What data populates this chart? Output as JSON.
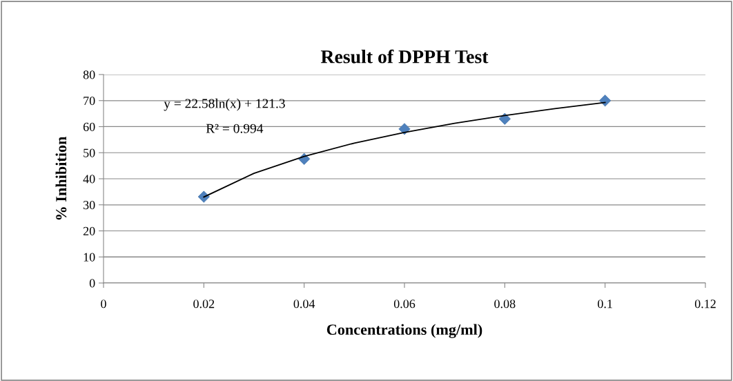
{
  "chart_data": {
    "type": "scatter",
    "title": "Result of DPPH Test",
    "xlabel": "Concentrations (mg/ml)",
    "ylabel": "% Inhibition",
    "series": [
      {
        "color": "#4f81bd",
        "marker": "diamond",
        "x": [
          0.02,
          0.04,
          0.06,
          0.08,
          0.1
        ],
        "values": [
          33.1,
          47.6,
          59.1,
          63,
          70
        ]
      },
      {
        "type": "line",
        "color": "#000000",
        "marker": "none",
        "line_style": "solid",
        "x": [
          0.02,
          0.03,
          0.04,
          0.05,
          0.06,
          0.07,
          0.08,
          0.09,
          0.1
        ],
        "values": [
          33.0,
          42.1,
          48.6,
          53.7,
          57.8,
          61.3,
          64.3,
          66.9,
          69.3
        ]
      }
    ],
    "annotations": [
      "y = 22.58ln(x) + 121.3",
      "R² = 0.994"
    ],
    "xlim": [
      0,
      0.12
    ],
    "xticks": [
      0,
      0.02,
      0.04,
      0.06,
      0.08,
      0.1,
      0.12
    ],
    "ylim": [
      0,
      80
    ],
    "yticks": [
      0,
      10,
      20,
      30,
      40,
      50,
      60,
      70,
      80
    ],
    "grid": "y",
    "legend": false
  }
}
